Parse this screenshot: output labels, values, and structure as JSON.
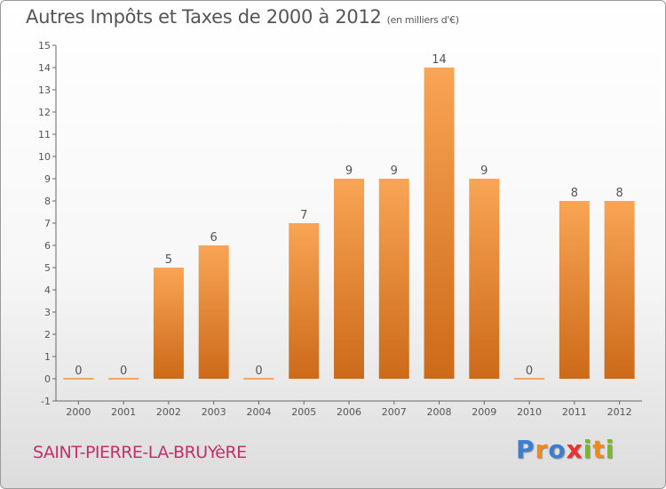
{
  "title": "Autres Impôts et Taxes de 2000 à 2012",
  "unit": "(en milliers d'€)",
  "commune": "SAINT-PIERRE-LA-BRUYèRE",
  "logo": {
    "letters": [
      "P",
      "r",
      "o",
      "x",
      "i",
      "t",
      "i"
    ],
    "colors": [
      "#3a7fd0",
      "#f08a1e",
      "#3a7fd0",
      "#e8322f",
      "#7ab828",
      "#f08a1e",
      "#7ab828"
    ]
  },
  "chart_data": {
    "type": "bar",
    "categories": [
      "2000",
      "2001",
      "2002",
      "2003",
      "2004",
      "2005",
      "2006",
      "2007",
      "2008",
      "2009",
      "2010",
      "2011",
      "2012"
    ],
    "values": [
      0,
      0,
      5,
      6,
      0,
      7,
      9,
      9,
      14,
      9,
      0,
      8,
      8
    ],
    "ylim": [
      -1,
      15
    ],
    "yticks": [
      -1,
      0,
      1,
      2,
      3,
      4,
      5,
      6,
      7,
      8,
      9,
      10,
      11,
      12,
      13,
      14,
      15
    ],
    "grid": false,
    "colors": {
      "bar_light": "#f8a555",
      "bar_dark": "#cc6a18",
      "axis": "#666666",
      "label": "#555555"
    }
  }
}
